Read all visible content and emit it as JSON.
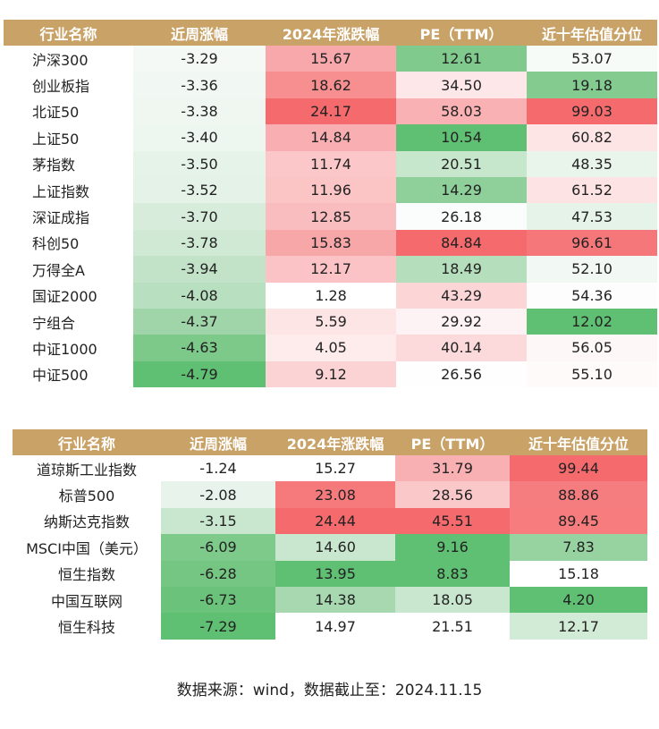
{
  "table1": {
    "headers": [
      "行业名称",
      "近周涨幅",
      "2024年涨跌幅",
      "PE（TTM）",
      "近十年估值分位"
    ],
    "col_widths": [
      145,
      148,
      146,
      146,
      146
    ],
    "rows": [
      {
        "cells": [
          "沪深300",
          "-3.29",
          "15.67",
          "12.61",
          "53.07"
        ],
        "colors": [
          "#ffffff",
          "#f5f9f6",
          "#f8a8aa",
          "#7fca8c",
          "#f7fbf8"
        ]
      },
      {
        "cells": [
          "创业板指",
          "-3.36",
          "18.62",
          "34.50",
          "19.18"
        ],
        "colors": [
          "#ffffff",
          "#f1f7f2",
          "#f78f91",
          "#fde7e8",
          "#83cb8f"
        ]
      },
      {
        "cells": [
          "北证50",
          "-3.38",
          "24.17",
          "58.03",
          "99.03"
        ],
        "colors": [
          "#ffffff",
          "#f0f7f1",
          "#f56a6c",
          "#f9b1b3",
          "#f56a6c"
        ]
      },
      {
        "cells": [
          "上证50",
          "-3.40",
          "14.84",
          "10.54",
          "60.82"
        ],
        "colors": [
          "#ffffff",
          "#eef6f0",
          "#f9afb1",
          "#5fbf72",
          "#fde5e6"
        ]
      },
      {
        "cells": [
          "茅指数",
          "-3.50",
          "11.74",
          "20.51",
          "48.35"
        ],
        "colors": [
          "#ffffff",
          "#e6f3e9",
          "#fbc7c8",
          "#c7e7cc",
          "#e9f5eb"
        ]
      },
      {
        "cells": [
          "上证指数",
          "-3.52",
          "11.96",
          "14.29",
          "61.52"
        ],
        "colors": [
          "#ffffff",
          "#e5f2e8",
          "#fbc5c6",
          "#8fd09a",
          "#fde3e4"
        ]
      },
      {
        "cells": [
          "深证成指",
          "-3.70",
          "12.85",
          "26.18",
          "47.53"
        ],
        "colors": [
          "#ffffff",
          "#d7ecdb",
          "#fabdbf",
          "#fbfdfc",
          "#e5f3e8"
        ]
      },
      {
        "cells": [
          "科创50",
          "-3.78",
          "15.83",
          "84.84",
          "96.61"
        ],
        "colors": [
          "#ffffff",
          "#d0e9d5",
          "#f8a7a9",
          "#f56a6c",
          "#f6777a"
        ]
      },
      {
        "cells": [
          "万得全A",
          "-3.94",
          "12.17",
          "18.49",
          "52.10"
        ],
        "colors": [
          "#ffffff",
          "#c3e3c9",
          "#fbc3c5",
          "#b5dfbc",
          "#f2f8f3"
        ]
      },
      {
        "cells": [
          "国证2000",
          "-4.08",
          "1.28",
          "43.29",
          "54.36"
        ],
        "colors": [
          "#ffffff",
          "#b8dfbf",
          "#ffffff",
          "#fcd6d7",
          "#fcfdfc"
        ]
      },
      {
        "cells": [
          "宁组合",
          "-4.37",
          "5.59",
          "29.92",
          "12.02"
        ],
        "colors": [
          "#ffffff",
          "#a0d5a9",
          "#fde5e6",
          "#fef3f4",
          "#5fbf72"
        ]
      },
      {
        "cells": [
          "中证1000",
          "-4.63",
          "4.05",
          "40.14",
          "56.05"
        ],
        "colors": [
          "#ffffff",
          "#7cc989",
          "#feebec",
          "#fcdadb",
          "#fef7f7"
        ]
      },
      {
        "cells": [
          "中证500",
          "-4.79",
          "9.12",
          "26.56",
          "55.10"
        ],
        "colors": [
          "#ffffff",
          "#5fbf72",
          "#fcd3d4",
          "#fdfefd",
          "#fffafa"
        ]
      }
    ]
  },
  "table2": {
    "headers": [
      "行业名称",
      "近周涨幅",
      "2024年涨跌幅",
      "PE（TTM）",
      "近十年估值分位"
    ],
    "col_widths": [
      166,
      128,
      134,
      128,
      154
    ],
    "rows": [
      {
        "cells": [
          "道琼斯工业指数",
          "-1.24",
          "15.27",
          "31.79",
          "99.44"
        ],
        "colors": [
          "#ffffff",
          "#ffffff",
          "#ffffff",
          "#f9b0b2",
          "#f56a6c"
        ]
      },
      {
        "cells": [
          "标普500",
          "-2.08",
          "23.08",
          "28.56",
          "88.86"
        ],
        "colors": [
          "#ffffff",
          "#e8f4eb",
          "#f67a7c",
          "#fbc8c9",
          "#f67d7f"
        ]
      },
      {
        "cells": [
          "纳斯达克指数",
          "-3.15",
          "24.44",
          "45.51",
          "89.45"
        ],
        "colors": [
          "#ffffff",
          "#c9e6cf",
          "#f56a6c",
          "#f56a6c",
          "#f67c7e"
        ]
      },
      {
        "cells": [
          "MSCI中国（美元）",
          "-6.09",
          "14.60",
          "9.16",
          "7.83"
        ],
        "colors": [
          "#ffffff",
          "#7dca8a",
          "#c9e7cf",
          "#5fbf72",
          "#97d3a1"
        ]
      },
      {
        "cells": [
          "恒生指数",
          "-6.28",
          "13.95",
          "8.83",
          "15.18"
        ],
        "colors": [
          "#ffffff",
          "#75c683",
          "#5fbf72",
          "#5fbf72",
          "#ffffff"
        ]
      },
      {
        "cells": [
          "中国互联网",
          "-6.73",
          "14.38",
          "18.05",
          "4.20"
        ],
        "colors": [
          "#ffffff",
          "#6ac27b",
          "#a7d8b0",
          "#c9e6cf",
          "#5fbf72"
        ]
      },
      {
        "cells": [
          "恒生科技",
          "-7.29",
          "14.97",
          "21.51",
          "12.17"
        ],
        "colors": [
          "#ffffff",
          "#5fbf72",
          "#ffffff",
          "#ffffff",
          "#d2ebd7"
        ]
      }
    ]
  },
  "source_note": "数据来源：wind，数据截止至：2024.11.15"
}
